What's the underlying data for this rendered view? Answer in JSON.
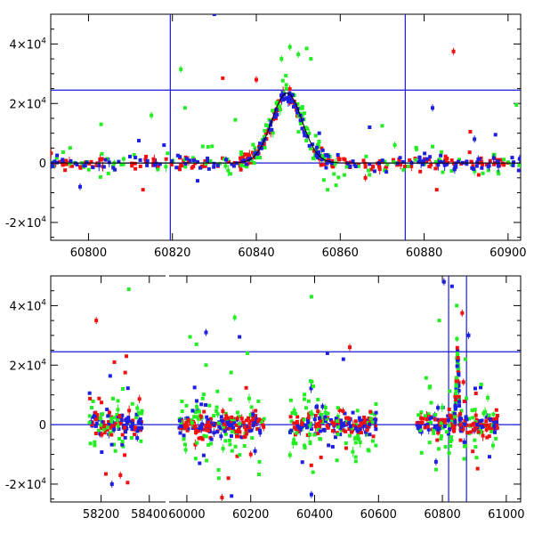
{
  "colors": {
    "red": "#f01010",
    "green": "#22ee22",
    "blue": "#1f1fe0",
    "ref": "#1a1adb",
    "fit": "#000000"
  },
  "chart_data": [
    {
      "type": "scatter",
      "name": "zoom-panel",
      "xlim": [
        60791,
        60903
      ],
      "ylim": [
        -26000,
        50000
      ],
      "xticks": [
        60800,
        60820,
        60840,
        60860,
        60880,
        60900
      ],
      "xtick_labels": [
        "60800",
        "60820",
        "60840",
        "60860",
        "60880",
        "60900"
      ],
      "yticks": [
        -20000,
        0,
        20000,
        40000
      ],
      "ytick_labels": [
        {
          "mant": "-2×10",
          "exp": "4"
        },
        {
          "mant": "0",
          "exp": ""
        },
        {
          "mant": "2×10",
          "exp": "4"
        },
        {
          "mant": "4×10",
          "exp": "4"
        }
      ],
      "hlines": [
        0,
        24500
      ],
      "vlines": [
        60819.5,
        60875.5
      ],
      "peak_model": {
        "amplitude": 23500,
        "center": 60847.3,
        "sigma": 3.6
      },
      "flare": [
        60836,
        60859
      ],
      "baseline_scatter": 1200,
      "counts": {
        "red": 230,
        "green": 150,
        "blue": 180
      },
      "outliers": [
        {
          "series": "green",
          "x": 60822,
          "y": 31500
        },
        {
          "series": "green",
          "x": 60823,
          "y": 18500
        },
        {
          "series": "green",
          "x": 60835,
          "y": 14500
        },
        {
          "series": "green",
          "x": 60846,
          "y": 35000
        },
        {
          "series": "green",
          "x": 60848,
          "y": 39000
        },
        {
          "series": "green",
          "x": 60850,
          "y": 36500
        },
        {
          "series": "green",
          "x": 60852,
          "y": 38500
        },
        {
          "series": "green",
          "x": 60853,
          "y": 35000
        },
        {
          "series": "green",
          "x": 60803,
          "y": 13000
        },
        {
          "series": "green",
          "x": 60815,
          "y": 16000
        },
        {
          "series": "green",
          "x": 60857,
          "y": -9000
        },
        {
          "series": "green",
          "x": 60859,
          "y": -7500
        },
        {
          "series": "green",
          "x": 60867,
          "y": -4000
        },
        {
          "series": "green",
          "x": 60870,
          "y": 12500
        },
        {
          "series": "green",
          "x": 60894,
          "y": -3500
        },
        {
          "series": "green",
          "x": 60902,
          "y": 19500
        },
        {
          "series": "green",
          "x": 60882,
          "y": 5500
        },
        {
          "series": "green",
          "x": 60873,
          "y": 6000
        },
        {
          "series": "red",
          "x": 60887,
          "y": 37500
        },
        {
          "series": "red",
          "x": 60891,
          "y": 10500
        },
        {
          "series": "red",
          "x": 60893,
          "y": -4000
        },
        {
          "series": "red",
          "x": 60883,
          "y": -9000
        },
        {
          "series": "red",
          "x": 60813,
          "y": -9000
        },
        {
          "series": "red",
          "x": 60866,
          "y": -5000
        },
        {
          "series": "red",
          "x": 60840,
          "y": 28000
        },
        {
          "series": "red",
          "x": 60832,
          "y": 28500
        },
        {
          "series": "blue",
          "x": 60830,
          "y": 50000
        },
        {
          "series": "blue",
          "x": 60882,
          "y": 18500
        },
        {
          "series": "blue",
          "x": 60867,
          "y": 12000
        },
        {
          "series": "blue",
          "x": 60892,
          "y": 8000
        },
        {
          "series": "blue",
          "x": 60897,
          "y": 9500
        },
        {
          "series": "blue",
          "x": 60798,
          "y": -8000
        },
        {
          "series": "blue",
          "x": 60812,
          "y": 7500
        },
        {
          "series": "blue",
          "x": 60818,
          "y": 6000
        },
        {
          "series": "blue",
          "x": 60826,
          "y": -6000
        },
        {
          "series": "blue",
          "x": 60855,
          "y": 10000
        },
        {
          "series": "blue",
          "x": 60871,
          "y": -3000
        }
      ]
    },
    {
      "type": "scatter",
      "name": "full-panel",
      "xlim": [
        57930,
        61045
      ],
      "ylim": [
        -26000,
        50000
      ],
      "xticks": [
        58200,
        58400,
        60000,
        60200,
        60400,
        60600,
        60800,
        61000
      ],
      "xtick_labels": [
        "58200",
        "58400",
        "60000",
        "60200",
        "60400",
        "60600",
        "60800",
        "61000"
      ],
      "yticks": [
        -20000,
        0,
        20000,
        40000
      ],
      "ytick_labels": [
        {
          "mant": "-2×10",
          "exp": "4"
        },
        {
          "mant": "0",
          "exp": ""
        },
        {
          "mant": "2×10",
          "exp": "4"
        },
        {
          "mant": "4×10",
          "exp": "4"
        }
      ],
      "hlines": [
        0,
        24500
      ],
      "vlines": [
        60819.5,
        60875.5
      ],
      "axis_break": 59950,
      "break_mapping": {
        "left_range": [
          58050,
          58460
        ],
        "right_range": [
          59950,
          61045
        ]
      },
      "seasons": [
        {
          "start": 58150,
          "end": 58370,
          "count": 160
        },
        {
          "start": 59975,
          "end": 60245,
          "count": 260
        },
        {
          "start": 60320,
          "end": 60595,
          "count": 260
        },
        {
          "start": 60720,
          "end": 60975,
          "count": 240
        }
      ],
      "peak_model": {
        "amplitude": 23500,
        "center": 60847.3,
        "sigma": 3.6
      },
      "outliers": [
        {
          "series": "red",
          "x": 58180,
          "y": 35000
        },
        {
          "series": "red",
          "x": 58255,
          "y": 21000
        },
        {
          "series": "red",
          "x": 58305,
          "y": 23000
        },
        {
          "series": "red",
          "x": 58310,
          "y": -19500
        },
        {
          "series": "red",
          "x": 58300,
          "y": 17500
        },
        {
          "series": "red",
          "x": 58280,
          "y": -17000
        },
        {
          "series": "green",
          "x": 58315,
          "y": 45500
        },
        {
          "series": "green",
          "x": 58290,
          "y": 12000
        },
        {
          "series": "green",
          "x": 58270,
          "y": 8000
        },
        {
          "series": "blue",
          "x": 58245,
          "y": -20000
        },
        {
          "series": "blue",
          "x": 58350,
          "y": -4500
        },
        {
          "series": "green",
          "x": 60010,
          "y": 29500
        },
        {
          "series": "green",
          "x": 60030,
          "y": 27000
        },
        {
          "series": "green",
          "x": 60150,
          "y": 36000
        },
        {
          "series": "green",
          "x": 60190,
          "y": 24000
        },
        {
          "series": "green",
          "x": 60060,
          "y": 20000
        },
        {
          "series": "green",
          "x": 60100,
          "y": -18000
        },
        {
          "series": "blue",
          "x": 60060,
          "y": 31000
        },
        {
          "series": "blue",
          "x": 60165,
          "y": 29500
        },
        {
          "series": "blue",
          "x": 60040,
          "y": -13000
        },
        {
          "series": "blue",
          "x": 60140,
          "y": -24000
        },
        {
          "series": "red",
          "x": 60110,
          "y": -24500
        },
        {
          "series": "red",
          "x": 60200,
          "y": -10000
        },
        {
          "series": "red",
          "x": 60130,
          "y": -18000
        },
        {
          "series": "green",
          "x": 60390,
          "y": 43000
        },
        {
          "series": "green",
          "x": 60395,
          "y": -16000
        },
        {
          "series": "blue",
          "x": 60390,
          "y": -23500
        },
        {
          "series": "blue",
          "x": 60440,
          "y": 24000
        },
        {
          "series": "blue",
          "x": 60490,
          "y": 22000
        },
        {
          "series": "red",
          "x": 60510,
          "y": 26000
        },
        {
          "series": "green",
          "x": 60470,
          "y": -12000
        },
        {
          "series": "red",
          "x": 60420,
          "y": -11000
        },
        {
          "series": "blue",
          "x": 60805,
          "y": 48000
        },
        {
          "series": "blue",
          "x": 60830,
          "y": 46500
        },
        {
          "series": "green",
          "x": 60845,
          "y": 40000
        },
        {
          "series": "red",
          "x": 60862,
          "y": 37500
        },
        {
          "series": "green",
          "x": 60790,
          "y": 35000
        },
        {
          "series": "blue",
          "x": 60780,
          "y": -12500
        },
        {
          "series": "blue",
          "x": 60882,
          "y": 30000
        },
        {
          "series": "green",
          "x": 60872,
          "y": 22000
        },
        {
          "series": "red",
          "x": 60905,
          "y": 10500
        },
        {
          "series": "red",
          "x": 60895,
          "y": -9000
        },
        {
          "series": "green",
          "x": 60760,
          "y": -6000
        },
        {
          "series": "green",
          "x": 60735,
          "y": -9500
        }
      ]
    }
  ]
}
